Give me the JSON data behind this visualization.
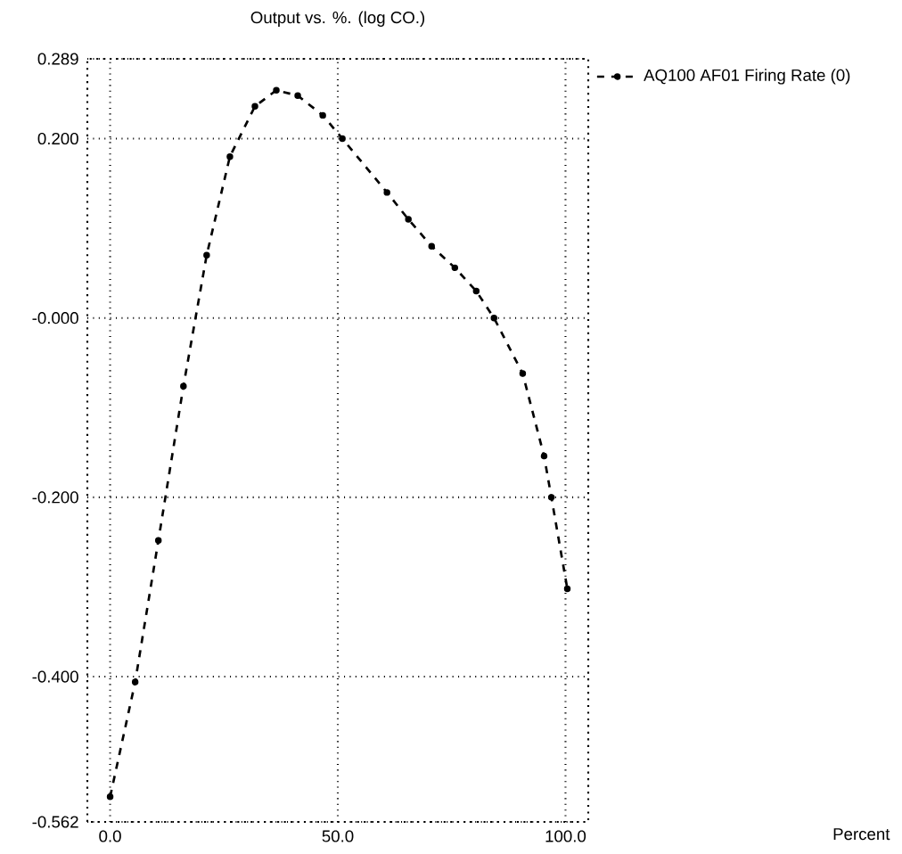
{
  "chart_data": {
    "type": "line",
    "title": "Output vs. %. (log CO.)",
    "annotations": [
      "Percent"
    ],
    "x": [
      0,
      5.5,
      10.6,
      16.1,
      21.2,
      26.3,
      31.8,
      36.5,
      41.2,
      46.7,
      51,
      60.8,
      65.5,
      70.6,
      75.7,
      80.4,
      84.3,
      90.6,
      95.3,
      96.9,
      100.4
    ],
    "series": [
      {
        "name": "AQ100 AF01 Firing Rate (0)",
        "color": "#000000",
        "values": [
          -0.534,
          -0.406,
          -0.248,
          -0.076,
          0.07,
          0.18,
          0.236,
          0.254,
          0.248,
          0.226,
          0.2,
          0.14,
          0.11,
          0.08,
          0.056,
          0.03,
          0.0,
          -0.062,
          -0.154,
          -0.2,
          -0.302
        ]
      }
    ],
    "xlim": [
      -5,
      105
    ],
    "ylim": [
      -0.562,
      0.289
    ],
    "xticks": [
      {
        "value": 0,
        "label": "0.0"
      },
      {
        "value": 50,
        "label": "50.0"
      },
      {
        "value": 100,
        "label": "100.0"
      }
    ],
    "yticks": [
      {
        "value": -0.562,
        "label": "-0.562"
      },
      {
        "value": -0.4,
        "label": "-0.400"
      },
      {
        "value": -0.2,
        "label": "-0.200"
      },
      {
        "value": 0,
        "label": "-0.000"
      },
      {
        "value": 0.2,
        "label": "0.200"
      },
      0.289
    ],
    "grid": true,
    "legend": "top right",
    "marker": "circle",
    "line_style": "dashed"
  }
}
